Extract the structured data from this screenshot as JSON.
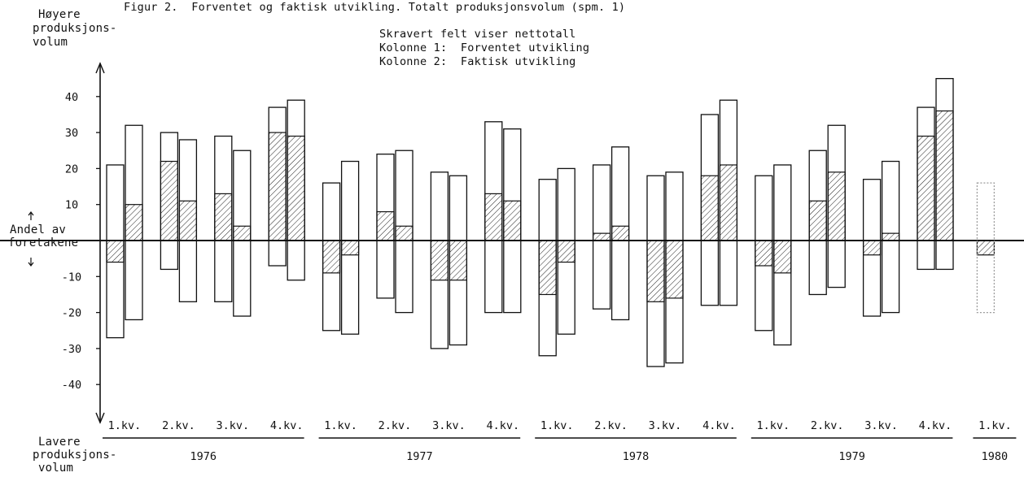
{
  "title": "Figur 2.  Forventet og faktisk utvikling. Totalt produksjonsvolum (spm. 1)",
  "legend_lines": [
    "Skravert felt viser nettotall",
    "Kolonne 1:  Forventet utvikling",
    "Kolonne 2:  Faktisk utvikling"
  ],
  "y_top_label": [
    "Høyere",
    "produksjons-",
    "volum"
  ],
  "y_mid_label": [
    "Andel av",
    "foretakene"
  ],
  "y_bottom_label": [
    "Lavere",
    "produksjons-",
    "volum"
  ],
  "colors": {
    "ink": "#111111",
    "faded": "#9a9a9a",
    "background": "#ffffff"
  },
  "chart_data": {
    "type": "bar",
    "description": "Diverging bars: upper part = share expecting/reporting higher volume, lower part = share lower; hatched part = net (higher - lower). Column 1 expected, column 2 actual.",
    "y_ticks": [
      40,
      30,
      20,
      10,
      -10,
      -20,
      -30,
      -40
    ],
    "ylim": [
      -45,
      45
    ],
    "years": [
      "1976",
      "1977",
      "1978",
      "1979",
      "1980"
    ],
    "quarters": [
      "1.kv.",
      "2.kv.",
      "3.kv.",
      "4.kv.",
      "1.kv.",
      "2.kv.",
      "3.kv.",
      "4.kv.",
      "1.kv.",
      "2.kv.",
      "3.kv.",
      "4.kv.",
      "1.kv.",
      "2.kv.",
      "3.kv.",
      "4.kv.",
      "1.kv."
    ],
    "series": [
      {
        "name": "Kolonne 1: Forventet utvikling",
        "higher": [
          21,
          30,
          29,
          37,
          16,
          24,
          19,
          33,
          17,
          21,
          18,
          35,
          18,
          25,
          17,
          37,
          16
        ],
        "lower": [
          -27,
          -8,
          -17,
          -7,
          -25,
          -16,
          -30,
          -20,
          -32,
          -19,
          -35,
          -18,
          -25,
          -15,
          -21,
          -8,
          -20
        ],
        "net": [
          -6,
          22,
          13,
          30,
          -9,
          8,
          -11,
          13,
          -15,
          2,
          -17,
          18,
          -7,
          11,
          -4,
          29,
          -4
        ]
      },
      {
        "name": "Kolonne 2: Faktisk utvikling",
        "higher": [
          32,
          28,
          25,
          39,
          22,
          25,
          18,
          31,
          20,
          26,
          19,
          39,
          21,
          32,
          22,
          45,
          null
        ],
        "lower": [
          -22,
          -17,
          -21,
          -11,
          -26,
          -20,
          -29,
          -20,
          -26,
          -22,
          -34,
          -18,
          -29,
          -13,
          -20,
          -8,
          null
        ],
        "net": [
          10,
          11,
          4,
          29,
          -4,
          4,
          -11,
          11,
          -6,
          4,
          -16,
          21,
          -9,
          19,
          2,
          36,
          null
        ]
      }
    ]
  }
}
